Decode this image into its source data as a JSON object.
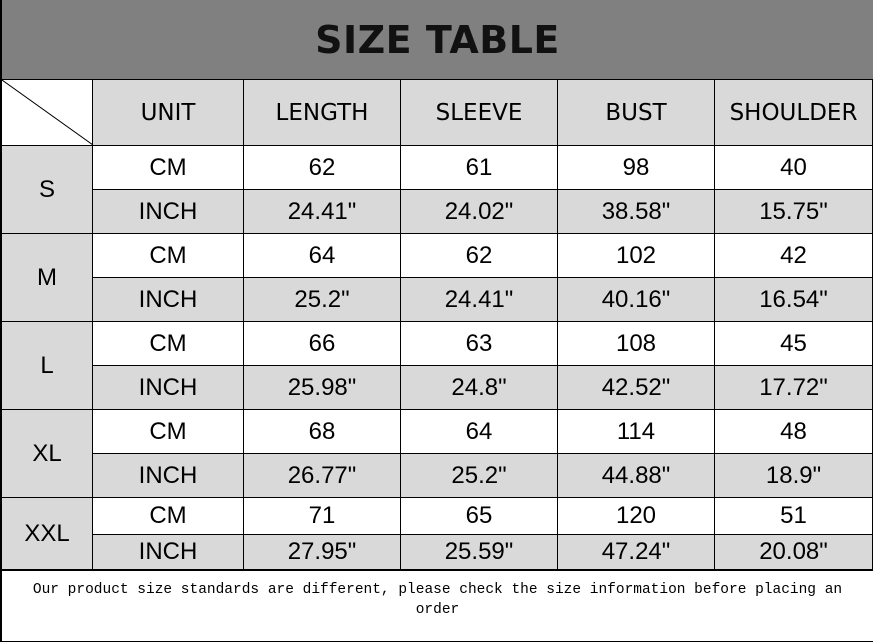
{
  "title": "SIZE TABLE",
  "headers": [
    "UNIT",
    "LENGTH",
    "SLEEVE",
    "BUST",
    "SHOULDER"
  ],
  "rows": [
    {
      "size": "S",
      "cm": [
        "CM",
        "62",
        "61",
        "98",
        "40"
      ],
      "inch": [
        "INCH",
        "24.41\"",
        "24.02\"",
        "38.58\"",
        "15.75\""
      ]
    },
    {
      "size": "M",
      "cm": [
        "CM",
        "64",
        "62",
        "102",
        "42"
      ],
      "inch": [
        "INCH",
        "25.2\"",
        "24.41\"",
        "40.16\"",
        "16.54\""
      ]
    },
    {
      "size": "L",
      "cm": [
        "CM",
        "66",
        "63",
        "108",
        "45"
      ],
      "inch": [
        "INCH",
        "25.98\"",
        "24.8\"",
        "42.52\"",
        "17.72\""
      ]
    },
    {
      "size": "XL",
      "cm": [
        "CM",
        "68",
        "64",
        "114",
        "48"
      ],
      "inch": [
        "INCH",
        "26.77\"",
        "25.2\"",
        "44.88\"",
        "18.9\""
      ]
    },
    {
      "size": "XXL",
      "cm": [
        "CM",
        "71",
        "65",
        "120",
        "51"
      ],
      "inch": [
        "INCH",
        "27.95\"",
        "25.59\"",
        "47.24\"",
        "20.08\""
      ]
    }
  ],
  "footer": "Our product size standards are different, please check the size information before placing an order",
  "colors": {
    "title_bg": "#808080",
    "shaded": "#d9d9d9"
  }
}
